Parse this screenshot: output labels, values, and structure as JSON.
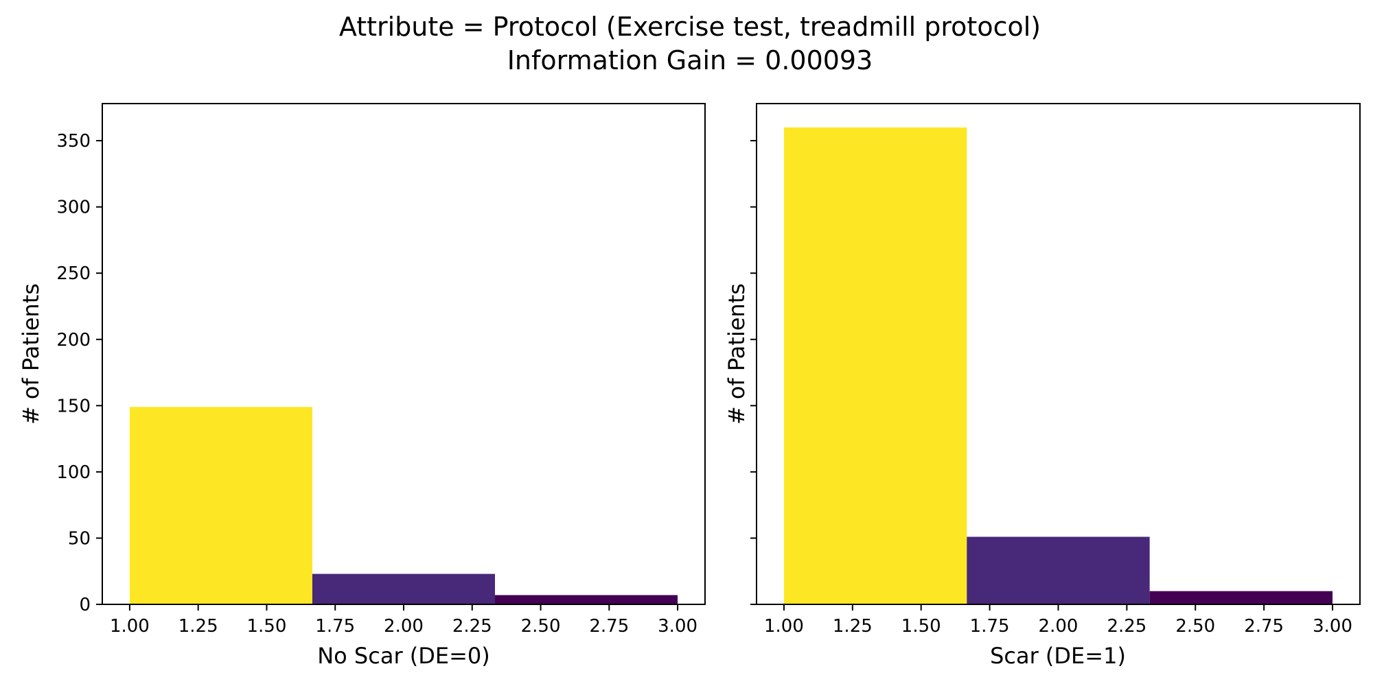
{
  "figure": {
    "title_line1": "Attribute = Protocol (Exercise test, treadmill protocol)",
    "title_line2": "Information Gain = 0.00093"
  },
  "chart_data": [
    {
      "type": "bar",
      "histogram": true,
      "xlabel": "No Scar (DE=0)",
      "ylabel": "# of Patients",
      "xlim": [
        0.9,
        3.1
      ],
      "ylim": [
        0,
        378
      ],
      "xticks": [
        "1.00",
        "1.25",
        "1.50",
        "1.75",
        "2.00",
        "2.25",
        "2.50",
        "2.75",
        "3.00"
      ],
      "yticks": [
        "0",
        "50",
        "100",
        "150",
        "200",
        "250",
        "300",
        "350"
      ],
      "show_ytick_labels": true,
      "bins": [
        {
          "x0": 1.0,
          "x1": 1.6667,
          "value": 149,
          "color": "#fde725"
        },
        {
          "x0": 1.6667,
          "x1": 2.3333,
          "value": 23,
          "color": "#482878"
        },
        {
          "x0": 2.3333,
          "x1": 3.0,
          "value": 7,
          "color": "#440154"
        }
      ],
      "grid": false
    },
    {
      "type": "bar",
      "histogram": true,
      "xlabel": "Scar (DE=1)",
      "ylabel": "# of Patients",
      "xlim": [
        0.9,
        3.1
      ],
      "ylim": [
        0,
        378
      ],
      "xticks": [
        "1.00",
        "1.25",
        "1.50",
        "1.75",
        "2.00",
        "2.25",
        "2.50",
        "2.75",
        "3.00"
      ],
      "yticks": [
        "0",
        "50",
        "100",
        "150",
        "200",
        "250",
        "300",
        "350"
      ],
      "show_ytick_labels": false,
      "bins": [
        {
          "x0": 1.0,
          "x1": 1.6667,
          "value": 360,
          "color": "#fde725"
        },
        {
          "x0": 1.6667,
          "x1": 2.3333,
          "value": 51,
          "color": "#482878"
        },
        {
          "x0": 2.3333,
          "x1": 3.0,
          "value": 10,
          "color": "#440154"
        }
      ],
      "grid": false
    }
  ]
}
